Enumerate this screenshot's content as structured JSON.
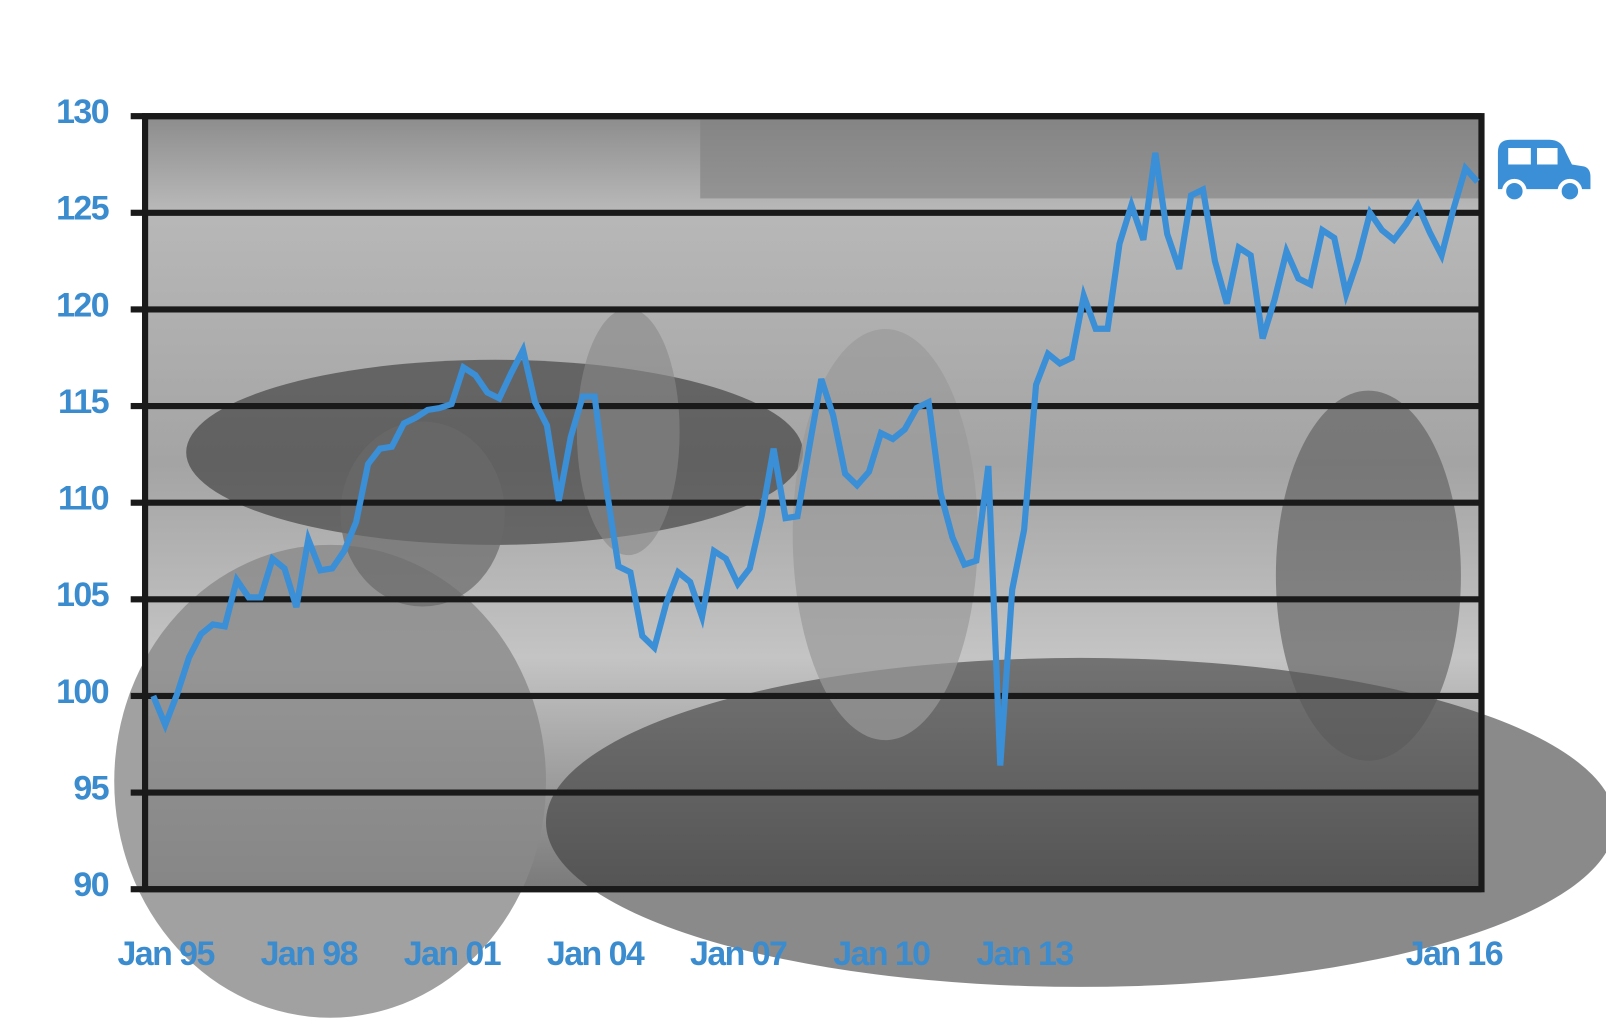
{
  "chart_data": {
    "type": "line",
    "categories": [
      "Jan 95",
      null,
      null,
      null,
      null,
      null,
      null,
      null,
      null,
      null,
      null,
      null,
      "Jan 98",
      null,
      null,
      null,
      null,
      null,
      null,
      null,
      null,
      null,
      null,
      null,
      "Jan 01",
      null,
      null,
      null,
      null,
      null,
      null,
      null,
      null,
      null,
      null,
      null,
      "Jan 04",
      null,
      null,
      null,
      null,
      null,
      null,
      null,
      null,
      null,
      null,
      null,
      "Jan 07",
      null,
      null,
      null,
      null,
      null,
      null,
      null,
      null,
      null,
      null,
      null,
      "Jan 10",
      null,
      null,
      null,
      null,
      null,
      null,
      null,
      null,
      null,
      null,
      null,
      "Jan 13",
      null,
      null,
      null,
      null,
      null,
      null,
      null,
      null,
      null,
      null,
      null,
      null,
      null,
      null,
      null,
      null,
      null,
      null,
      null,
      null,
      null,
      null,
      null,
      null,
      null,
      null,
      null,
      null,
      null,
      null,
      null,
      null,
      null,
      null,
      null,
      "Jan 16",
      null,
      null,
      null
    ],
    "values": [
      100.0,
      98.5,
      100.1,
      102.0,
      103.2,
      103.7,
      103.6,
      106.0,
      105.1,
      105.1,
      107.1,
      106.6,
      104.6,
      108.1,
      106.5,
      106.6,
      107.5,
      109.0,
      112.0,
      112.8,
      112.9,
      114.1,
      114.4,
      114.8,
      114.9,
      115.1,
      117.0,
      116.6,
      115.7,
      115.4,
      116.7,
      117.9,
      115.2,
      114.0,
      110.1,
      113.4,
      115.5,
      115.5,
      110.7,
      106.7,
      106.4,
      103.1,
      102.5,
      104.8,
      106.4,
      105.9,
      104.1,
      107.5,
      107.1,
      105.8,
      106.6,
      109.3,
      112.8,
      109.2,
      109.3,
      112.9,
      116.4,
      114.5,
      111.5,
      110.9,
      111.6,
      113.6,
      113.3,
      113.8,
      114.9,
      115.2,
      110.5,
      108.2,
      106.8,
      107.0,
      111.9,
      96.4,
      105.5,
      108.6,
      116.1,
      117.7,
      117.2,
      117.5,
      120.7,
      119.0,
      119.0,
      123.4,
      125.4,
      123.6,
      128.1,
      123.9,
      122.1,
      125.9,
      126.2,
      122.5,
      120.3,
      123.2,
      122.8,
      118.5,
      120.5,
      123.0,
      121.6,
      121.3,
      124.1,
      123.7,
      120.8,
      122.6,
      125.0,
      124.1,
      123.6,
      124.4,
      125.4,
      124.0,
      122.8,
      125.2,
      127.3,
      126.6
    ],
    "color": "#3a8fd6",
    "ylim": [
      90,
      130
    ],
    "yticks": [
      90,
      95,
      100,
      105,
      110,
      115,
      120,
      125,
      130
    ],
    "grid": true
  }
}
